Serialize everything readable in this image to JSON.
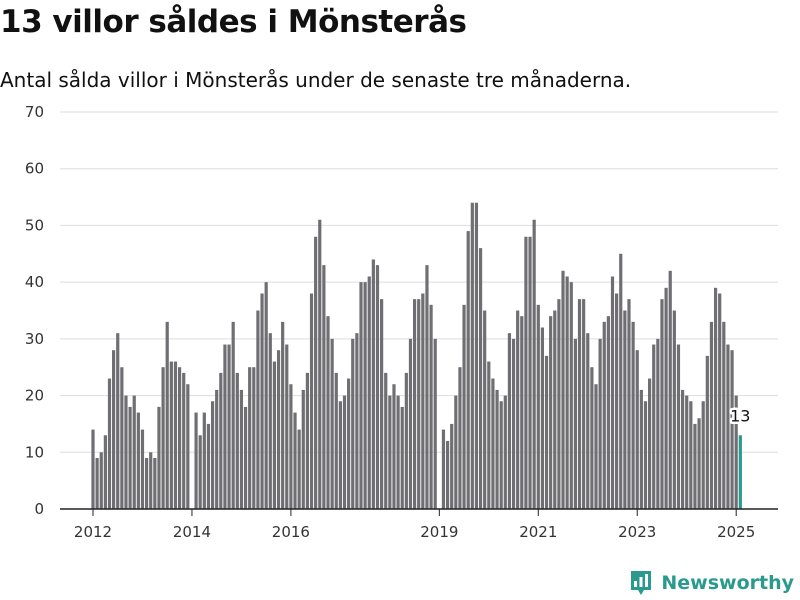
{
  "title": "13 villor såldes i Mönsterås",
  "subtitle": "Antal sålda villor i Mönsterås under de senaste tre månaderna.",
  "brand": {
    "name": "Newsworthy",
    "icon": "bar-chart-logo-icon",
    "color": "#2a9a8e"
  },
  "chart_data": {
    "type": "bar",
    "start": "2012-01",
    "values": [
      14,
      9,
      10,
      13,
      23,
      28,
      31,
      25,
      20,
      18,
      20,
      17,
      14,
      9,
      10,
      9,
      18,
      25,
      33,
      26,
      26,
      25,
      24,
      22,
      0,
      17,
      13,
      17,
      15,
      19,
      21,
      24,
      29,
      29,
      33,
      24,
      21,
      18,
      25,
      25,
      35,
      38,
      40,
      31,
      26,
      28,
      33,
      29,
      22,
      17,
      14,
      21,
      24,
      38,
      48,
      51,
      43,
      34,
      30,
      24,
      19,
      20,
      23,
      30,
      31,
      40,
      40,
      41,
      44,
      43,
      37,
      24,
      20,
      22,
      20,
      18,
      24,
      30,
      37,
      37,
      38,
      43,
      36,
      30,
      0,
      14,
      12,
      15,
      20,
      25,
      36,
      49,
      54,
      54,
      46,
      35,
      26,
      23,
      21,
      19,
      20,
      31,
      30,
      35,
      34,
      48,
      48,
      51,
      36,
      32,
      27,
      34,
      35,
      37,
      42,
      41,
      40,
      30,
      37,
      37,
      31,
      25,
      22,
      30,
      33,
      34,
      41,
      38,
      45,
      35,
      37,
      33,
      28,
      21,
      19,
      23,
      29,
      30,
      37,
      39,
      42,
      35,
      29,
      21,
      20,
      19,
      15,
      16,
      19,
      27,
      33,
      39,
      38,
      33,
      29,
      28,
      20,
      13
    ],
    "highlight_index": 157,
    "highlight_label": "13",
    "bar_color": "#6f6e73",
    "highlight_color": "#2a9a8e",
    "ylim": [
      0,
      70
    ],
    "yticks": [
      0,
      10,
      20,
      30,
      40,
      50,
      60,
      70
    ],
    "xticks": [
      {
        "label": "2012",
        "index": 0
      },
      {
        "label": "2014",
        "index": 24
      },
      {
        "label": "2016",
        "index": 48
      },
      {
        "label": "2019",
        "index": 84
      },
      {
        "label": "2021",
        "index": 108
      },
      {
        "label": "2023",
        "index": 132
      },
      {
        "label": "2025",
        "index": 156
      }
    ],
    "grid": true,
    "xlabel": "",
    "ylabel": ""
  }
}
